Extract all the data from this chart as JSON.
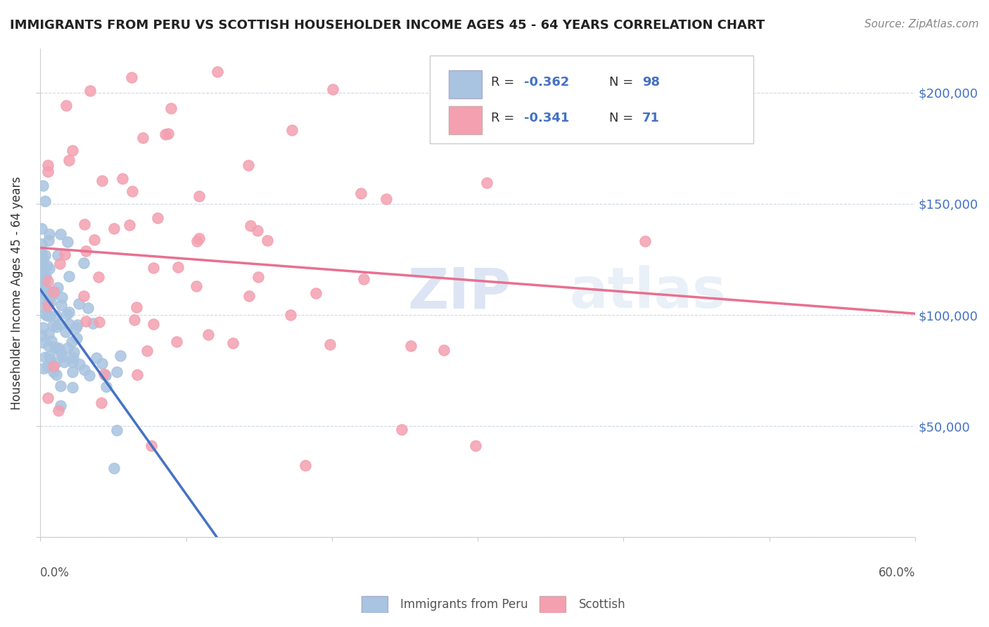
{
  "title": "IMMIGRANTS FROM PERU VS SCOTTISH HOUSEHOLDER INCOME AGES 45 - 64 YEARS CORRELATION CHART",
  "source": "Source: ZipAtlas.com",
  "ylabel": "Householder Income Ages 45 - 64 years",
  "yticks": [
    0,
    50000,
    100000,
    150000,
    200000
  ],
  "ytick_labels": [
    "",
    "$50,000",
    "$100,000",
    "$150,000",
    "$200,000"
  ],
  "xlim": [
    0.0,
    0.6
  ],
  "ylim": [
    0,
    220000
  ],
  "legend_r1": "R = -0.362",
  "legend_n1": "N = 98",
  "legend_r2": "R = -0.341",
  "legend_n2": "N = 71",
  "color_peru": "#a8c4e0",
  "color_scottish": "#f4a0b0",
  "color_peru_line": "#4472c4",
  "color_scottish_line": "#e87090",
  "color_dashed": "#b0b8c8",
  "background_color": "#ffffff",
  "watermark_zip": "ZIP",
  "watermark_atlas": "atlas"
}
